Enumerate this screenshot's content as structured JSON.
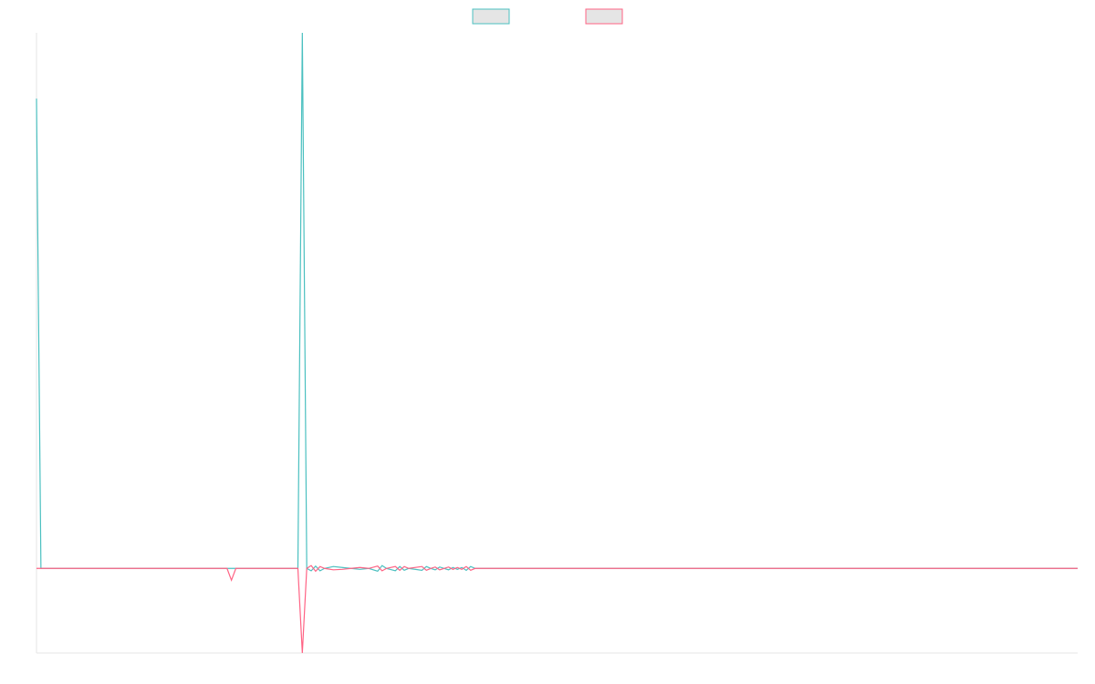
{
  "chart_data": {
    "type": "line",
    "title": "",
    "xlabel": "",
    "ylabel": "",
    "x_count": 236,
    "ylim": [
      -0.18,
      1.14
    ],
    "grid": false,
    "legend_position": "top-center",
    "series": [
      {
        "name": "",
        "color": "#4bc0c0",
        "fill": "#e5e5e5",
        "points": [
          [
            0,
            1.0
          ],
          [
            1,
            0.0
          ],
          [
            59,
            0.0
          ],
          [
            60,
            1.14
          ],
          [
            61,
            0.0
          ],
          [
            62,
            -0.005
          ],
          [
            63,
            0.005
          ],
          [
            64,
            -0.005
          ],
          [
            65,
            0.0
          ],
          [
            67,
            0.004
          ],
          [
            69,
            0.002
          ],
          [
            71,
            0.0
          ],
          [
            73,
            -0.002
          ],
          [
            75,
            0.0
          ],
          [
            77,
            -0.006
          ],
          [
            78,
            0.006
          ],
          [
            79,
            0.0
          ],
          [
            81,
            -0.005
          ],
          [
            82,
            0.004
          ],
          [
            83,
            -0.004
          ],
          [
            84,
            0.0
          ],
          [
            87,
            -0.004
          ],
          [
            88,
            0.004
          ],
          [
            89,
            0.0
          ],
          [
            90,
            -0.003
          ],
          [
            91,
            0.003
          ],
          [
            92,
            0.0
          ],
          [
            93,
            -0.003
          ],
          [
            94,
            0.002
          ],
          [
            95,
            -0.002
          ],
          [
            96,
            0.002
          ],
          [
            97,
            -0.004
          ],
          [
            98,
            0.004
          ],
          [
            99,
            0.0
          ],
          [
            235,
            0.0
          ]
        ]
      },
      {
        "name": "",
        "color": "#ff6384",
        "fill": "#e5e5e5",
        "points": [
          [
            0,
            0.0
          ],
          [
            43,
            0.0
          ],
          [
            44,
            -0.025
          ],
          [
            45,
            0.0
          ],
          [
            59,
            0.0
          ],
          [
            60,
            -0.18
          ],
          [
            61,
            0.0
          ],
          [
            62,
            0.006
          ],
          [
            63,
            -0.006
          ],
          [
            64,
            0.004
          ],
          [
            65,
            0.0
          ],
          [
            67,
            -0.003
          ],
          [
            69,
            -0.002
          ],
          [
            71,
            0.0
          ],
          [
            73,
            0.002
          ],
          [
            75,
            0.0
          ],
          [
            77,
            0.005
          ],
          [
            78,
            -0.005
          ],
          [
            79,
            0.0
          ],
          [
            81,
            0.004
          ],
          [
            82,
            -0.004
          ],
          [
            83,
            0.004
          ],
          [
            84,
            0.0
          ],
          [
            87,
            0.004
          ],
          [
            88,
            -0.004
          ],
          [
            89,
            0.0
          ],
          [
            90,
            0.003
          ],
          [
            91,
            -0.003
          ],
          [
            92,
            0.0
          ],
          [
            93,
            0.003
          ],
          [
            94,
            -0.002
          ],
          [
            95,
            0.002
          ],
          [
            96,
            -0.002
          ],
          [
            97,
            0.004
          ],
          [
            98,
            -0.004
          ],
          [
            99,
            0.0
          ],
          [
            235,
            0.0
          ]
        ]
      }
    ]
  }
}
